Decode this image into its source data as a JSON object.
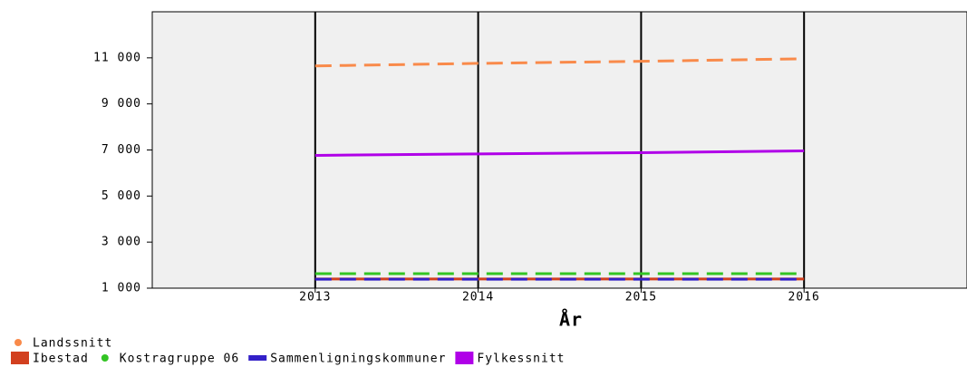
{
  "chart_data": {
    "type": "line",
    "xlabel": "År",
    "x": [
      2013,
      2014,
      2015,
      2016
    ],
    "xlim": [
      2012,
      2017
    ],
    "xticks": [
      2013,
      2014,
      2015,
      2016
    ],
    "ylim": [
      1000,
      13000
    ],
    "yticks": [
      {
        "value": 1000,
        "label": "1 000"
      },
      {
        "value": 3000,
        "label": "3 000"
      },
      {
        "value": 5000,
        "label": "5 000"
      },
      {
        "value": 7000,
        "label": "7 000"
      },
      {
        "value": 9000,
        "label": "9 000"
      },
      {
        "value": 11000,
        "label": "11 000"
      }
    ],
    "grid": "x",
    "series": [
      {
        "name": "Landssnitt",
        "color": "#f98a4a",
        "dashed": true,
        "values": [
          10650,
          10760,
          10850,
          10960
        ]
      },
      {
        "name": "Ibestad",
        "color": "#d2401f",
        "dashed": false,
        "values": [
          1400,
          1400,
          1400,
          1400
        ]
      },
      {
        "name": "Kostragruppe 06",
        "color": "#33c424",
        "dashed": true,
        "values": [
          1630,
          1630,
          1630,
          1630
        ]
      },
      {
        "name": "Sammenligningskommuner",
        "color": "#3320c8",
        "dashed": true,
        "values": [
          1390,
          1390,
          1390,
          1390
        ]
      },
      {
        "name": "Fylkessnitt",
        "color": "#b000e8",
        "dashed": false,
        "values": [
          6765,
          6830,
          6880,
          6960
        ]
      }
    ]
  }
}
